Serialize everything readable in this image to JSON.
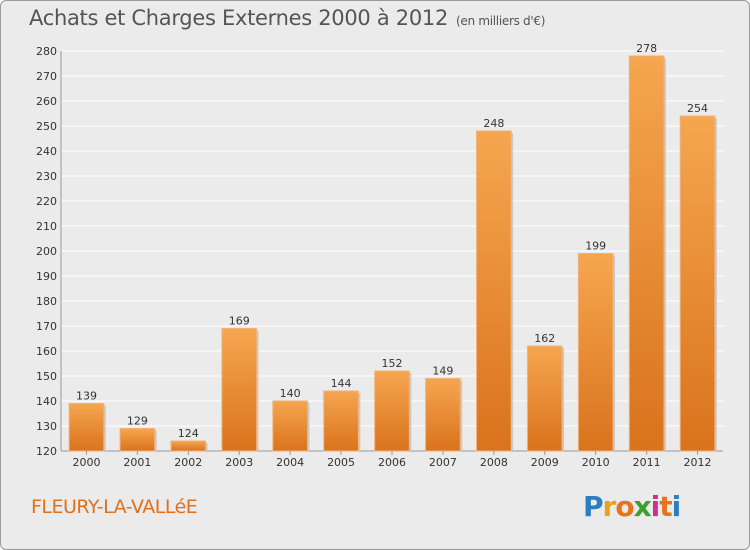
{
  "title": "Achats et Charges Externes 2000 à 2012",
  "unit_note": "(en milliers d'€)",
  "commune": "FLEURY-LA-VALLéE",
  "logo": {
    "letters": [
      "P",
      "r",
      "o",
      "x",
      "i",
      "t",
      "i"
    ],
    "colors": [
      "#2b7fc1",
      "#e8a317",
      "#e8731a",
      "#3aa02f",
      "#d22f8a",
      "#e8731a",
      "#2b7fc1"
    ]
  },
  "colors": {
    "bar_top": "#f6a650",
    "bar_bottom": "#d9731c",
    "grid": "#ffffff",
    "background": "#ebebeb"
  },
  "chart_data": {
    "type": "bar",
    "title": "Achats et Charges Externes 2000 à 2012",
    "categories": [
      "2000",
      "2001",
      "2002",
      "2003",
      "2004",
      "2005",
      "2006",
      "2007",
      "2008",
      "2009",
      "2010",
      "2011",
      "2012"
    ],
    "values": [
      139,
      129,
      124,
      169,
      140,
      144,
      152,
      149,
      248,
      162,
      199,
      278,
      254
    ],
    "ylim": [
      120,
      280
    ],
    "yticks": [
      120,
      130,
      140,
      150,
      160,
      170,
      180,
      190,
      200,
      210,
      220,
      230,
      240,
      250,
      260,
      270,
      280
    ],
    "grid": true,
    "data_labels": true
  }
}
